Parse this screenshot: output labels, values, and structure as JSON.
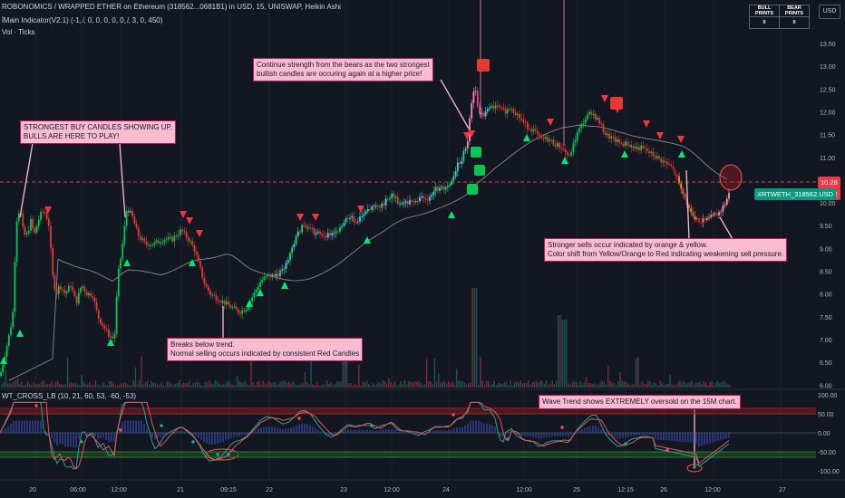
{
  "header": {
    "title_line": "ROBONOMICS / WRAPPED ETHER on Ethereum (318562...0681B1) in USD, 15, UNISWAP, Heikin Ashi",
    "indicator_line": "ἵMain Indicator(V2.1) (-1, ̸, 0, 0, 0, 0, 0, ̸, 3, 0, 450)",
    "vol_line": "Vol · Ticks"
  },
  "prints_table": {
    "bull_label": "BULL PRINTS",
    "bear_label": "BEAR PRINTS",
    "bull_value": "0",
    "bear_value": "0"
  },
  "currency_button": "USD",
  "price_axis": {
    "labels": [
      "13.50",
      "13.00",
      "12.50",
      "12.00",
      "11.50",
      "11.00",
      "10.50",
      "10.00",
      "9.50",
      "9.00",
      "8.50",
      "8.00",
      "7.50",
      "7.00",
      "6.50",
      "6.00"
    ],
    "current_price": "10.28",
    "last_close": "10.22",
    "symbol_badge": "XRTWETH_318562.USD"
  },
  "oscillator": {
    "title": "WT_CROSS_LB (10, 21, 60, 53, -60, -53)",
    "labels": [
      "100.00",
      "50.00",
      "0.00",
      "-50.00",
      "-100.00"
    ]
  },
  "time_axis": {
    "labels": [
      "20",
      "06:00",
      "12:00",
      "21",
      "09:15",
      "22",
      "23",
      "12:00",
      "24",
      "12:00",
      "25",
      "12:15",
      "26",
      "12:00",
      "27"
    ]
  },
  "annotations": {
    "strongest_buy": [
      "STRONGEST BUY CANDLES SHOWING UP,",
      "BULLS ARE HERE TO PLAY!"
    ],
    "continue_strength": [
      "Continue strength from the bears as the two strongest",
      "bullish candles are occuring again at a higher price!"
    ],
    "breaks_below": [
      "Breaks below trend.",
      "Normal selling occurs indicated by consistent Red Candles"
    ],
    "stronger_sells": [
      "Stronger sells occur indicated by orange & yellow.",
      "Color shift from Yellow/Orange to Red indicating weakening sell pressure."
    ],
    "wave_trend": "Wave Trend shows EXTREMELY oversold on the 15M chart."
  },
  "colors": {
    "background": "#131722",
    "bull_candle": "#26a69a",
    "bull_bright": "#00e676",
    "bear_candle": "#ef5350",
    "annotation_bg": "#f8bbd0",
    "price_badge": "#f23645",
    "symbol_badge": "#089981"
  }
}
